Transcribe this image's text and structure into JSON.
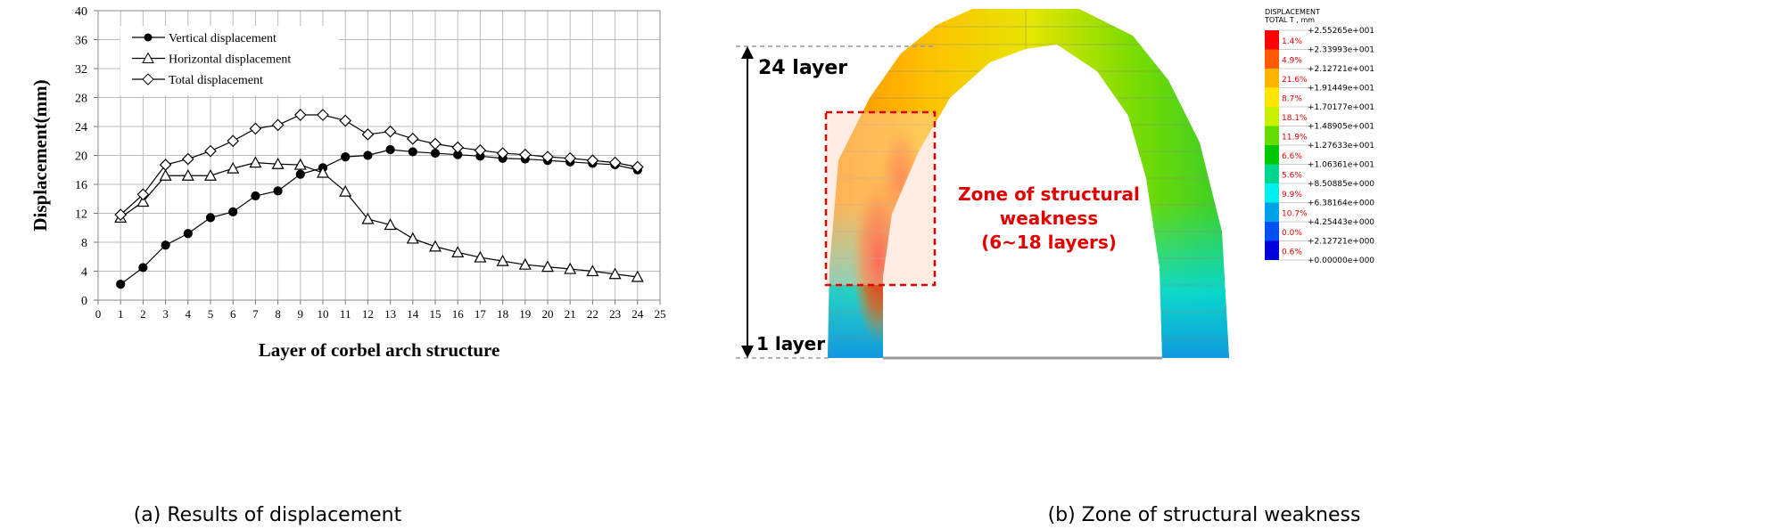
{
  "chart_data": {
    "type": "line",
    "xlabel": "Layer of corbel arch structure",
    "ylabel": "Displacement(mm)",
    "caption": "(a) Results of displacement",
    "x": [
      1,
      2,
      3,
      4,
      5,
      6,
      7,
      8,
      9,
      10,
      11,
      12,
      13,
      14,
      15,
      16,
      17,
      18,
      19,
      20,
      21,
      22,
      23,
      24
    ],
    "series": [
      {
        "name": "Vertical displacement",
        "color": "#000000",
        "marker": "circle",
        "values": [
          2.2,
          4.5,
          7.6,
          9.2,
          11.4,
          12.2,
          14.4,
          15.1,
          17.4,
          18.3,
          19.8,
          20.0,
          20.8,
          20.5,
          20.3,
          20.1,
          19.9,
          19.6,
          19.5,
          19.3,
          19.1,
          18.9,
          18.7,
          18.0
        ]
      },
      {
        "name": "Horizontal displacement",
        "color": "#000000",
        "marker": "triangle",
        "values": [
          11.4,
          13.6,
          17.2,
          17.2,
          17.2,
          18.2,
          19.0,
          18.8,
          18.7,
          17.6,
          15.0,
          11.2,
          10.4,
          8.5,
          7.4,
          6.6,
          5.9,
          5.4,
          4.9,
          4.6,
          4.3,
          4.0,
          3.6,
          3.2
        ]
      },
      {
        "name": "Total displacement",
        "color": "#000000",
        "marker": "diamond",
        "values": [
          11.8,
          14.6,
          18.7,
          19.5,
          20.6,
          22.0,
          23.7,
          24.2,
          25.6,
          25.6,
          24.8,
          22.9,
          23.3,
          22.3,
          21.6,
          21.1,
          20.7,
          20.3,
          20.1,
          19.8,
          19.6,
          19.3,
          19.0,
          18.4
        ]
      }
    ],
    "xlim": [
      0,
      25
    ],
    "xticks": [
      0,
      1,
      2,
      3,
      4,
      5,
      6,
      7,
      8,
      9,
      10,
      11,
      12,
      13,
      14,
      15,
      16,
      17,
      18,
      19,
      20,
      21,
      22,
      23,
      24,
      25
    ],
    "ylim": [
      0,
      40
    ],
    "yticks": [
      0,
      4,
      8,
      12,
      16,
      20,
      24,
      28,
      32,
      36,
      40
    ],
    "grid": true,
    "legend": "upper left"
  },
  "contour": {
    "caption": "(b) Zone of structural weakness",
    "top_label": "24 layer",
    "bottom_label": "1 layer",
    "zone_label": [
      "Zone of structural",
      "weakness",
      "(6~18 layers)"
    ],
    "legend": {
      "title": [
        "DISPLACEMENT",
        "TOTAL T , mm"
      ],
      "levels": [
        "+2.55265e+001",
        "+2.33993e+001",
        "+2.12721e+001",
        "+1.91449e+001",
        "+1.70177e+001",
        "+1.48905e+001",
        "+1.27633e+001",
        "+1.06361e+001",
        "+8.50885e+000",
        "+6.38164e+000",
        "+4.25443e+000",
        "+2.12721e+000",
        "+0.00000e+000"
      ],
      "percents": [
        "1.4%",
        "4.9%",
        "21.6%",
        "8.7%",
        "18.1%",
        "11.9%",
        "6.6%",
        "5.6%",
        "9.9%",
        "10.7%",
        "0.0%",
        "0.6%"
      ],
      "colors": [
        "#ff0000",
        "#ff5a00",
        "#ffb400",
        "#ffe600",
        "#c8f000",
        "#64dc00",
        "#00c800",
        "#00d68c",
        "#00f0f0",
        "#00a0e6",
        "#0050f0",
        "#0000dc"
      ]
    }
  }
}
